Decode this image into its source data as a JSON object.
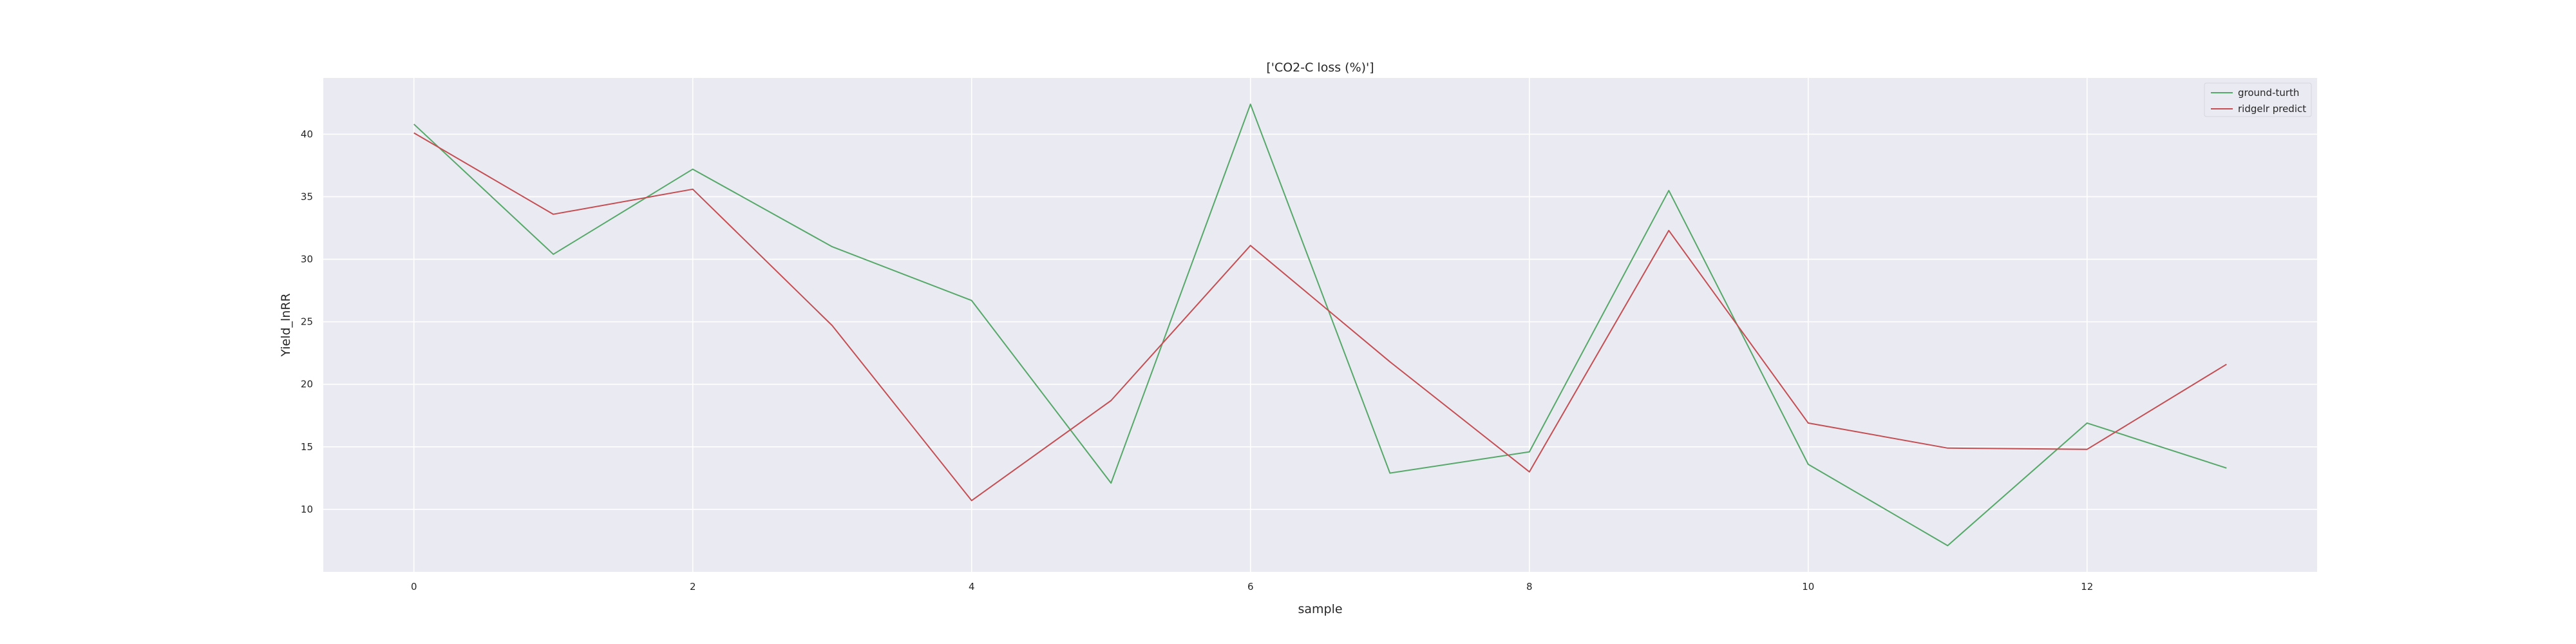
{
  "chart_data": {
    "type": "line",
    "title": "['CO2-C loss (%)']",
    "xlabel": "sample",
    "ylabel": "Yield_lnRR",
    "x": [
      0,
      1,
      2,
      3,
      4,
      5,
      6,
      7,
      8,
      9,
      10,
      11,
      12,
      13
    ],
    "xlim": [
      -0.65,
      13.65
    ],
    "ylim": [
      5.0,
      44.5
    ],
    "xticks": [
      0,
      2,
      4,
      6,
      8,
      10,
      12
    ],
    "yticks": [
      10,
      15,
      20,
      25,
      30,
      35,
      40
    ],
    "grid": true,
    "legend_position": "top-right",
    "series": [
      {
        "name": "ground-turth",
        "color": "#55a868",
        "values": [
          40.8,
          30.4,
          37.2,
          31.0,
          26.7,
          12.1,
          42.4,
          12.9,
          14.6,
          35.5,
          13.6,
          7.1,
          16.9,
          13.3
        ]
      },
      {
        "name": "ridgelr predict",
        "color": "#c44e52",
        "values": [
          40.1,
          33.6,
          35.6,
          24.7,
          10.7,
          18.7,
          31.1,
          21.8,
          13.0,
          32.3,
          16.9,
          14.9,
          14.8,
          21.6
        ]
      }
    ],
    "background_color": "#eaeaf2"
  }
}
